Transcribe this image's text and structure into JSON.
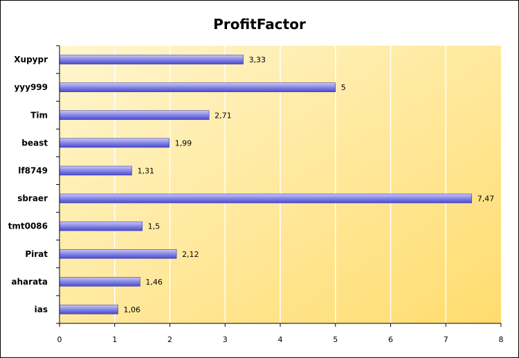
{
  "chart_data": {
    "type": "bar",
    "orientation": "horizontal",
    "title": "ProfitFactor",
    "xlabel": "",
    "ylabel": "",
    "categories": [
      "Xupypr",
      "yyy999",
      "Tim",
      "beast",
      "lf8749",
      "sbraer",
      "tmt0086",
      "Pirat",
      "aharata",
      "ias"
    ],
    "values": [
      3.33,
      5,
      2.71,
      1.99,
      1.31,
      7.47,
      1.5,
      2.12,
      1.46,
      1.06
    ],
    "value_labels": [
      "3,33",
      "5",
      "2,71",
      "1,99",
      "1,31",
      "7,47",
      "1,5",
      "2,12",
      "1,46",
      "1,06"
    ],
    "x_ticks": [
      "0",
      "1",
      "2",
      "3",
      "4",
      "5",
      "6",
      "7",
      "8"
    ],
    "xlim": [
      0,
      8
    ],
    "grid": true,
    "legend": "none",
    "colors": {
      "bar_top": "#c9c9f6",
      "bar_mid": "#8c8ce6",
      "bar_bottom": "#4a4ad0",
      "plot_bg_light": "#fff6cf",
      "plot_bg_dark": "#ffdc6e",
      "gridline": "#ffffff"
    }
  }
}
